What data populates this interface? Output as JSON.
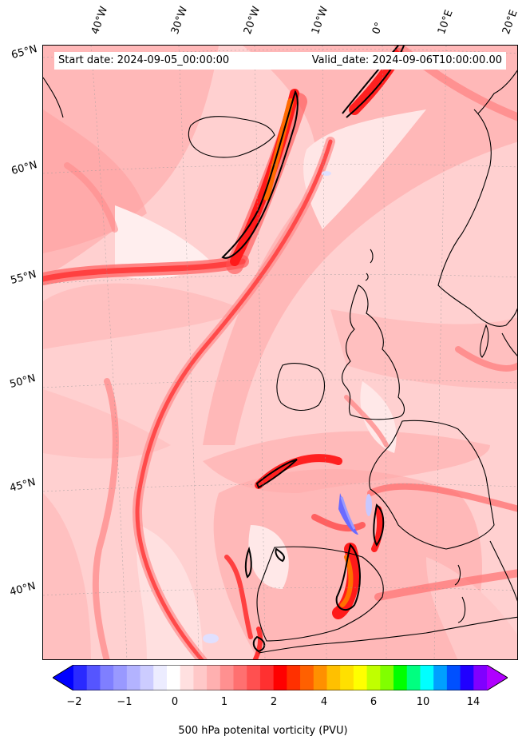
{
  "map": {
    "start_date": "Start date: 2024-09-05_00:00:00",
    "valid_date": "Valid_date: 2024-09-06T10:00:00.00",
    "lon_labels": [
      "40°W",
      "30°W",
      "20°W",
      "10°W",
      "0°",
      "10°E",
      "20°E"
    ],
    "lat_labels": [
      "65°N",
      "60°N",
      "55°N",
      "50°N",
      "45°N",
      "40°N"
    ],
    "field": "500 hPa potential vorticity",
    "units": "PVU"
  },
  "colorbar": {
    "label": "500 hPa potenital vorticity (PVU)",
    "tick_labels": [
      "−2",
      "−1",
      "0",
      "1",
      "2",
      "4",
      "6",
      "10",
      "14"
    ],
    "colors": [
      "#0000ff",
      "#2a2aff",
      "#5555ff",
      "#7f7fff",
      "#9999ff",
      "#b3b3ff",
      "#ccccff",
      "#ececff",
      "#ffffff",
      "#ffe0e0",
      "#ffc8c8",
      "#ffb0b0",
      "#ff9090",
      "#ff7070",
      "#ff5050",
      "#ff3030",
      "#ff0000",
      "#ff3000",
      "#ff6000",
      "#ff9000",
      "#ffc000",
      "#ffe000",
      "#ffff00",
      "#c0ff00",
      "#80ff00",
      "#00ff00",
      "#00ff80",
      "#00ffff",
      "#00a0ff",
      "#0050ff",
      "#2000ff",
      "#8000ff",
      "#b000ff"
    ]
  }
}
